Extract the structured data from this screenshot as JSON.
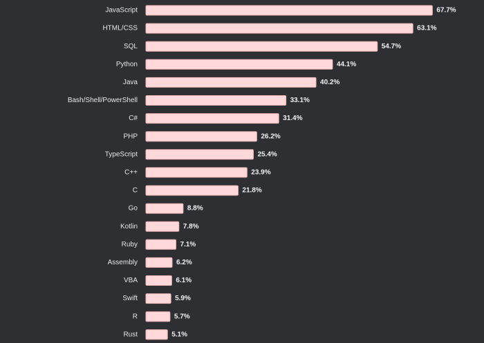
{
  "chart_data": {
    "type": "bar",
    "orientation": "horizontal",
    "title": "",
    "xlabel": "",
    "ylabel": "",
    "xlim": [
      0,
      70
    ],
    "grid": false,
    "legend": "none",
    "value_suffix": "%",
    "bar_color": "#ffd9d9",
    "bar_edge_color": "#f0b4b4",
    "background_color": "#2d2f33",
    "text_color": "#e6e6e6",
    "categories": [
      "JavaScript",
      "HTML/CSS",
      "SQL",
      "Python",
      "Java",
      "Bash/Shell/PowerShell",
      "C#",
      "PHP",
      "TypeScript",
      "C++",
      "C",
      "Go",
      "Kotlin",
      "Ruby",
      "Assembly",
      "VBA",
      "Swift",
      "R",
      "Rust"
    ],
    "values": [
      67.7,
      63.1,
      54.7,
      44.1,
      40.2,
      33.1,
      31.4,
      26.2,
      25.4,
      23.9,
      21.8,
      8.8,
      7.8,
      7.1,
      6.2,
      6.1,
      5.9,
      5.7,
      5.1
    ],
    "value_labels": [
      "67.7%",
      "63.1%",
      "54.7%",
      "44.1%",
      "40.2%",
      "33.1%",
      "31.4%",
      "26.2%",
      "25.4%",
      "23.9%",
      "21.8%",
      "8.8%",
      "7.8%",
      "7.1%",
      "6.2%",
      "6.1%",
      "5.9%",
      "5.7%",
      "5.1%"
    ]
  }
}
